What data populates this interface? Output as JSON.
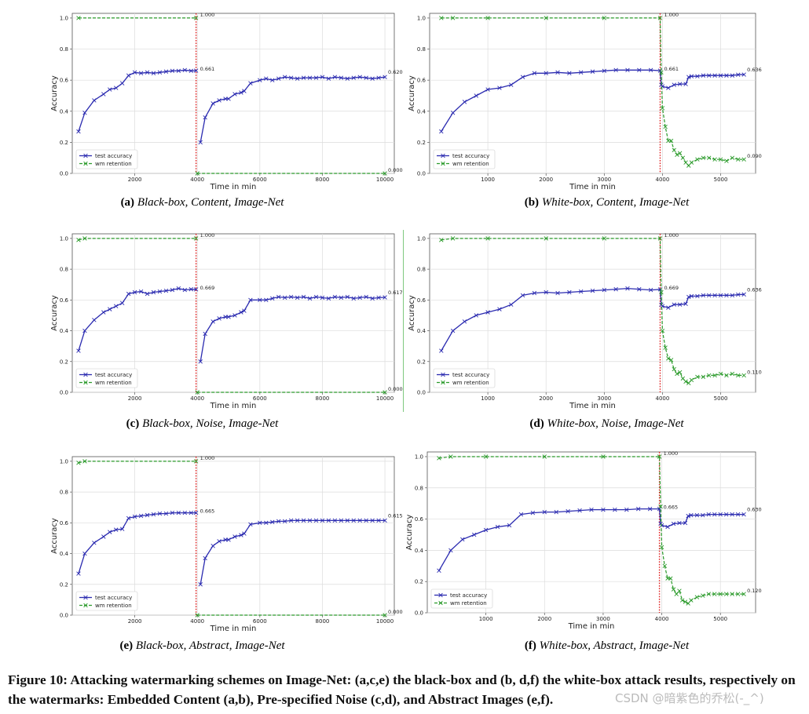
{
  "figure_caption": "Figure 10: Attacking watermarking schemes on Image-Net: (a,c,e) the black-box and (b, d,f) the white-box attack results, respectively on the watermarks: Embedded Content (a,b), Pre-specified Noise (c,d), and Abstract Images (e,f).",
  "watermark_text": "CSDN @暗紫色的乔松(-_^)",
  "colors": {
    "test": "#2b2bb0",
    "wm": "#2a9a2a",
    "attack_line": "#e02020"
  },
  "panels": [
    {
      "label": "(a)",
      "title": "Black-box, Content, Image-Net"
    },
    {
      "label": "(b)",
      "title": "White-box, Content, Image-Net"
    },
    {
      "label": "(c)",
      "title": "Black-box, Noise, Image-Net"
    },
    {
      "label": "(d)",
      "title": "White-box, Noise, Image-Net"
    },
    {
      "label": "(e)",
      "title": "Black-box, Abstract, Image-Net"
    },
    {
      "label": "(f)",
      "title": "White-box, Abstract, Image-Net"
    }
  ],
  "chart_data": [
    {
      "type": "line",
      "variant": "black",
      "xlabel": "Time in min",
      "ylabel": "Accuracy",
      "xlim": [
        0,
        10300
      ],
      "ylim": [
        0,
        1.03
      ],
      "xticks": [
        2000,
        4000,
        6000,
        8000,
        10000
      ],
      "yticks": [
        0.0,
        0.2,
        0.4,
        0.6,
        0.8,
        1.0
      ],
      "attack_x": 3960,
      "legend": "lower-left",
      "annotations": [
        "1.000",
        "0.661",
        "0.620",
        "0.000"
      ],
      "series": [
        {
          "name": "test accuracy",
          "style": "test",
          "x": [
            200,
            400,
            700,
            1000,
            1200,
            1400,
            1600,
            1800,
            2000,
            2200,
            2400,
            2600,
            2800,
            3000,
            3200,
            3400,
            3600,
            3800,
            3960,
            null,
            4100,
            4250,
            4500,
            4700,
            4900,
            5000,
            5200,
            5400,
            5500,
            5700,
            6000,
            6200,
            6400,
            6600,
            6800,
            7000,
            7200,
            7400,
            7600,
            7800,
            8000,
            8200,
            8400,
            8600,
            8800,
            9000,
            9200,
            9400,
            9600,
            9800,
            10000
          ],
          "y": [
            0.27,
            0.39,
            0.47,
            0.51,
            0.54,
            0.55,
            0.58,
            0.63,
            0.65,
            0.645,
            0.65,
            0.645,
            0.65,
            0.655,
            0.66,
            0.66,
            0.665,
            0.66,
            0.661,
            null,
            0.2,
            0.36,
            0.45,
            0.47,
            0.48,
            0.48,
            0.51,
            0.52,
            0.53,
            0.58,
            0.6,
            0.61,
            0.6,
            0.61,
            0.62,
            0.615,
            0.61,
            0.615,
            0.615,
            0.615,
            0.62,
            0.61,
            0.62,
            0.615,
            0.61,
            0.615,
            0.62,
            0.615,
            0.61,
            0.615,
            0.62
          ]
        },
        {
          "name": "wm retention",
          "style": "wm",
          "x": [
            200,
            3960,
            null,
            4000,
            10000
          ],
          "y": [
            1.0,
            1.0,
            null,
            0.0,
            0.0
          ]
        }
      ]
    },
    {
      "type": "line",
      "variant": "white",
      "xlabel": "Time in min",
      "ylabel": "Accuracy",
      "xlim": [
        0,
        5600
      ],
      "ylim": [
        0,
        1.03
      ],
      "xticks": [
        1000,
        2000,
        3000,
        4000,
        5000
      ],
      "yticks": [
        0.0,
        0.2,
        0.4,
        0.6,
        0.8,
        1.0
      ],
      "attack_x": 3960,
      "legend": "lower-left",
      "annotations": [
        "1.000",
        "0.661",
        "0.636",
        "0.090"
      ],
      "series": [
        {
          "name": "test accuracy",
          "style": "test",
          "x": [
            200,
            400,
            600,
            800,
            1000,
            1200,
            1400,
            1600,
            1800,
            2000,
            2200,
            2400,
            2600,
            2800,
            3000,
            3200,
            3400,
            3600,
            3800,
            3960,
            3980,
            4000,
            4100,
            4200,
            4300,
            4400,
            4450,
            4500,
            4600,
            4700,
            4800,
            4900,
            5000,
            5100,
            5200,
            5300,
            5400
          ],
          "y": [
            0.27,
            0.39,
            0.46,
            0.5,
            0.54,
            0.55,
            0.57,
            0.62,
            0.645,
            0.645,
            0.65,
            0.645,
            0.65,
            0.655,
            0.66,
            0.665,
            0.665,
            0.665,
            0.665,
            0.661,
            0.57,
            0.56,
            0.55,
            0.57,
            0.575,
            0.575,
            0.62,
            0.625,
            0.625,
            0.63,
            0.63,
            0.63,
            0.63,
            0.63,
            0.63,
            0.635,
            0.636
          ]
        },
        {
          "name": "wm retention",
          "style": "wm",
          "x": [
            200,
            400,
            1000,
            2000,
            3000,
            3960,
            3980,
            4000,
            4050,
            4100,
            4150,
            4200,
            4250,
            4300,
            4350,
            4400,
            4450,
            4500,
            4600,
            4700,
            4800,
            4900,
            5000,
            5100,
            5200,
            5300,
            5400
          ],
          "y": [
            1.0,
            1.0,
            1.0,
            1.0,
            1.0,
            1.0,
            0.65,
            0.42,
            0.3,
            0.21,
            0.21,
            0.15,
            0.12,
            0.13,
            0.1,
            0.07,
            0.05,
            0.07,
            0.09,
            0.1,
            0.1,
            0.09,
            0.09,
            0.08,
            0.1,
            0.09,
            0.09
          ]
        }
      ]
    },
    {
      "type": "line",
      "variant": "black",
      "xlabel": "Time in min",
      "ylabel": "Accuracy",
      "xlim": [
        0,
        10300
      ],
      "ylim": [
        0,
        1.03
      ],
      "xticks": [
        2000,
        4000,
        6000,
        8000,
        10000
      ],
      "yticks": [
        0.0,
        0.2,
        0.4,
        0.6,
        0.8,
        1.0
      ],
      "attack_x": 3960,
      "legend": "lower-left",
      "annotations": [
        "1.000",
        "0.669",
        "0.617",
        "0.000"
      ],
      "series": [
        {
          "name": "test accuracy",
          "style": "test",
          "x": [
            200,
            400,
            700,
            1000,
            1200,
            1400,
            1600,
            1800,
            2000,
            2200,
            2400,
            2600,
            2800,
            3000,
            3200,
            3400,
            3600,
            3800,
            3960,
            null,
            4100,
            4250,
            4500,
            4700,
            4900,
            5000,
            5200,
            5400,
            5500,
            5700,
            6000,
            6200,
            6400,
            6600,
            6800,
            7000,
            7200,
            7400,
            7600,
            7800,
            8000,
            8200,
            8400,
            8600,
            8800,
            9000,
            9200,
            9400,
            9600,
            9800,
            10000
          ],
          "y": [
            0.27,
            0.4,
            0.47,
            0.52,
            0.54,
            0.56,
            0.58,
            0.64,
            0.65,
            0.655,
            0.64,
            0.65,
            0.655,
            0.66,
            0.665,
            0.675,
            0.665,
            0.67,
            0.669,
            null,
            0.2,
            0.38,
            0.46,
            0.48,
            0.49,
            0.49,
            0.5,
            0.52,
            0.53,
            0.6,
            0.6,
            0.6,
            0.61,
            0.62,
            0.615,
            0.62,
            0.615,
            0.62,
            0.61,
            0.62,
            0.615,
            0.61,
            0.62,
            0.615,
            0.62,
            0.61,
            0.615,
            0.62,
            0.61,
            0.615,
            0.617
          ]
        },
        {
          "name": "wm retention",
          "style": "wm",
          "x": [
            200,
            400,
            3960,
            null,
            4000,
            10000
          ],
          "y": [
            0.99,
            1.0,
            1.0,
            null,
            0.0,
            0.0
          ]
        }
      ]
    },
    {
      "type": "line",
      "variant": "white",
      "xlabel": "Time in min",
      "ylabel": "Accuracy",
      "xlim": [
        0,
        5600
      ],
      "ylim": [
        0,
        1.03
      ],
      "xticks": [
        1000,
        2000,
        3000,
        4000,
        5000
      ],
      "yticks": [
        0.0,
        0.2,
        0.4,
        0.6,
        0.8,
        1.0
      ],
      "attack_x": 3960,
      "legend": "lower-left",
      "annotations": [
        "1.000",
        "0.669",
        "0.636",
        "0.110"
      ],
      "series": [
        {
          "name": "test accuracy",
          "style": "test",
          "x": [
            200,
            400,
            600,
            800,
            1000,
            1200,
            1400,
            1600,
            1800,
            2000,
            2200,
            2400,
            2600,
            2800,
            3000,
            3200,
            3400,
            3600,
            3800,
            3960,
            3980,
            4000,
            4100,
            4200,
            4300,
            4400,
            4450,
            4500,
            4600,
            4700,
            4800,
            4900,
            5000,
            5100,
            5200,
            5300,
            5400
          ],
          "y": [
            0.27,
            0.4,
            0.46,
            0.5,
            0.52,
            0.54,
            0.57,
            0.63,
            0.645,
            0.65,
            0.645,
            0.65,
            0.655,
            0.66,
            0.665,
            0.67,
            0.675,
            0.67,
            0.665,
            0.669,
            0.57,
            0.56,
            0.55,
            0.57,
            0.57,
            0.575,
            0.62,
            0.625,
            0.625,
            0.63,
            0.63,
            0.63,
            0.63,
            0.63,
            0.63,
            0.635,
            0.636
          ]
        },
        {
          "name": "wm retention",
          "style": "wm",
          "x": [
            200,
            400,
            1000,
            2000,
            3000,
            3960,
            3980,
            4000,
            4050,
            4100,
            4150,
            4200,
            4250,
            4300,
            4350,
            4400,
            4450,
            4500,
            4600,
            4700,
            4800,
            4900,
            5000,
            5100,
            5200,
            5300,
            5400
          ],
          "y": [
            0.99,
            1.0,
            1.0,
            1.0,
            1.0,
            1.0,
            0.65,
            0.4,
            0.29,
            0.22,
            0.21,
            0.15,
            0.12,
            0.13,
            0.09,
            0.07,
            0.06,
            0.08,
            0.1,
            0.1,
            0.11,
            0.11,
            0.12,
            0.11,
            0.12,
            0.11,
            0.11
          ]
        }
      ]
    },
    {
      "type": "line",
      "variant": "black",
      "xlabel": "Time in min",
      "ylabel": "Accuracy",
      "xlim": [
        0,
        10300
      ],
      "ylim": [
        0,
        1.03
      ],
      "xticks": [
        2000,
        4000,
        6000,
        8000,
        10000
      ],
      "yticks": [
        0.0,
        0.2,
        0.4,
        0.6,
        0.8,
        1.0
      ],
      "attack_x": 3960,
      "legend": "lower-left",
      "annotations": [
        "1.000",
        "0.665",
        "0.615",
        "0.000"
      ],
      "series": [
        {
          "name": "test accuracy",
          "style": "test",
          "x": [
            200,
            400,
            700,
            1000,
            1200,
            1400,
            1600,
            1800,
            2000,
            2200,
            2400,
            2600,
            2800,
            3000,
            3200,
            3400,
            3600,
            3800,
            3960,
            null,
            4100,
            4250,
            4500,
            4700,
            4900,
            5000,
            5200,
            5400,
            5500,
            5700,
            6000,
            6200,
            6400,
            6600,
            6800,
            7000,
            7200,
            7400,
            7600,
            7800,
            8000,
            8200,
            8400,
            8600,
            8800,
            9000,
            9200,
            9400,
            9600,
            9800,
            10000
          ],
          "y": [
            0.27,
            0.4,
            0.47,
            0.51,
            0.54,
            0.555,
            0.56,
            0.63,
            0.64,
            0.645,
            0.65,
            0.655,
            0.66,
            0.66,
            0.665,
            0.665,
            0.665,
            0.665,
            0.665,
            null,
            0.2,
            0.37,
            0.45,
            0.48,
            0.49,
            0.49,
            0.51,
            0.52,
            0.53,
            0.59,
            0.6,
            0.6,
            0.605,
            0.61,
            0.61,
            0.615,
            0.615,
            0.615,
            0.615,
            0.615,
            0.615,
            0.615,
            0.615,
            0.615,
            0.615,
            0.615,
            0.615,
            0.615,
            0.615,
            0.615,
            0.615
          ]
        },
        {
          "name": "wm retention",
          "style": "wm",
          "x": [
            200,
            400,
            3960,
            null,
            4000,
            10000
          ],
          "y": [
            0.99,
            1.0,
            1.0,
            null,
            0.0,
            0.0
          ]
        }
      ]
    },
    {
      "type": "line",
      "variant": "white",
      "xlabel": "Time in min",
      "ylabel": "Accuracy",
      "xlim": [
        0,
        5600
      ],
      "ylim": [
        0,
        1.03
      ],
      "xticks": [
        1000,
        2000,
        3000,
        4000,
        5000
      ],
      "yticks": [
        0.0,
        0.2,
        0.4,
        0.6,
        0.8,
        1.0
      ],
      "attack_x": 3960,
      "legend": "lower-left",
      "annotations": [
        "1.000",
        "0.665",
        "0.630",
        "0.120"
      ],
      "series": [
        {
          "name": "test accuracy",
          "style": "test",
          "x": [
            200,
            400,
            600,
            800,
            1000,
            1200,
            1400,
            1600,
            1800,
            2000,
            2200,
            2400,
            2600,
            2800,
            3000,
            3200,
            3400,
            3600,
            3800,
            3960,
            3980,
            4000,
            4100,
            4200,
            4300,
            4400,
            4450,
            4500,
            4600,
            4700,
            4800,
            4900,
            5000,
            5100,
            5200,
            5300,
            5400
          ],
          "y": [
            0.27,
            0.4,
            0.47,
            0.5,
            0.53,
            0.55,
            0.56,
            0.63,
            0.64,
            0.645,
            0.645,
            0.65,
            0.655,
            0.66,
            0.66,
            0.66,
            0.66,
            0.665,
            0.665,
            0.665,
            0.57,
            0.56,
            0.55,
            0.57,
            0.575,
            0.575,
            0.62,
            0.625,
            0.625,
            0.625,
            0.63,
            0.63,
            0.63,
            0.63,
            0.63,
            0.63,
            0.63
          ]
        },
        {
          "name": "wm retention",
          "style": "wm",
          "x": [
            200,
            400,
            1000,
            2000,
            3000,
            3960,
            3980,
            4000,
            4050,
            4100,
            4150,
            4200,
            4250,
            4300,
            4350,
            4400,
            4450,
            4500,
            4600,
            4700,
            4800,
            4900,
            5000,
            5100,
            5200,
            5300,
            5400
          ],
          "y": [
            0.99,
            1.0,
            1.0,
            1.0,
            1.0,
            1.0,
            0.68,
            0.42,
            0.3,
            0.22,
            0.22,
            0.15,
            0.12,
            0.14,
            0.08,
            0.07,
            0.06,
            0.08,
            0.1,
            0.11,
            0.12,
            0.12,
            0.12,
            0.12,
            0.12,
            0.12,
            0.12
          ]
        }
      ]
    }
  ]
}
